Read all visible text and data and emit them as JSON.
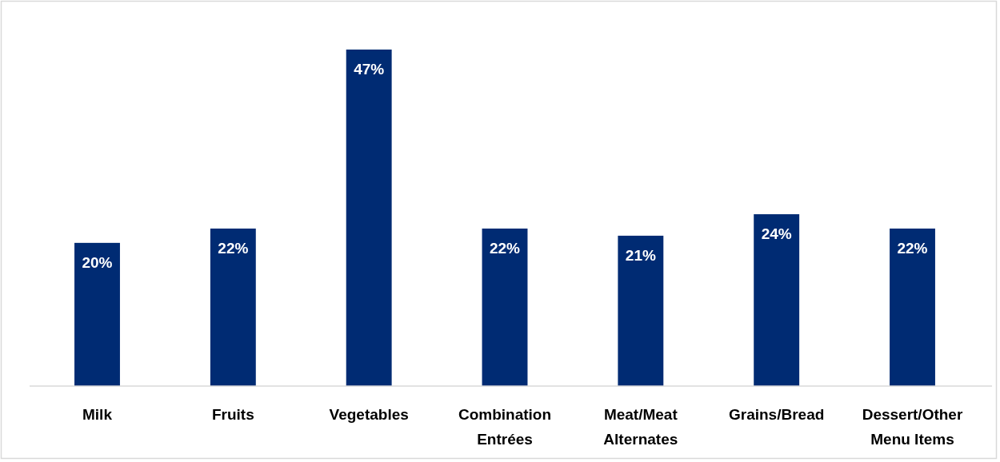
{
  "chart_data": {
    "type": "bar",
    "categories": [
      "Milk",
      "Fruits",
      "Vegetables",
      "Combination Entrées",
      "Meat/Meat Alternates",
      "Grains/Bread",
      "Dessert/Other Menu Items"
    ],
    "values": [
      20,
      22,
      47,
      22,
      21,
      24,
      22
    ],
    "color": "#002b73",
    "data_labels": true,
    "value_labels": [
      "20%",
      "22%",
      "47%",
      "22%",
      "21%",
      "24%",
      "22%"
    ]
  }
}
